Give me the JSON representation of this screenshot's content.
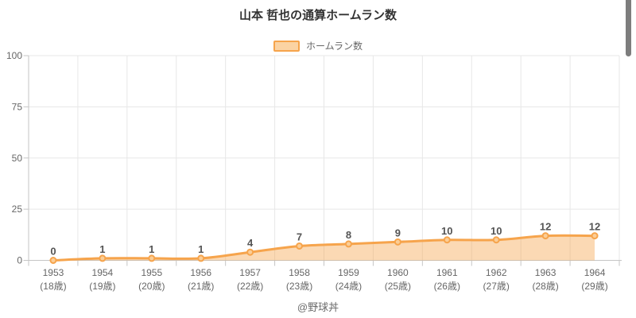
{
  "title": "山本 哲也の通算ホームラン数",
  "legend": {
    "label": "ホームラン数"
  },
  "footer": "@野球丼",
  "chart_data": {
    "type": "area",
    "title": "山本 哲也の通算ホームラン数",
    "categories": [
      "1953",
      "1954",
      "1955",
      "1956",
      "1957",
      "1958",
      "1959",
      "1960",
      "1961",
      "1962",
      "1963",
      "1964"
    ],
    "age_labels": [
      "(18歳)",
      "(19歳)",
      "(20歳)",
      "(21歳)",
      "(22歳)",
      "(23歳)",
      "(24歳)",
      "(25歳)",
      "(26歳)",
      "(27歳)",
      "(28歳)",
      "(29歳)"
    ],
    "series": [
      {
        "name": "ホームラン数",
        "values": [
          0,
          1,
          1,
          1,
          4,
          7,
          8,
          9,
          10,
          10,
          12,
          12
        ]
      }
    ],
    "data_labels": [
      "0",
      "1",
      "1",
      "1",
      "4",
      "7",
      "8",
      "9",
      "10",
      "10",
      "12",
      "12"
    ],
    "xlabel": "",
    "ylabel": "",
    "ylim": [
      0,
      100
    ],
    "y_ticks": [
      0,
      25,
      50,
      75,
      100
    ],
    "grid": true,
    "legend_position": "top",
    "smoothing": "catmull-rom",
    "colors": {
      "line": "#F6A44C",
      "area_fill": "rgba(246,164,76,0.42)",
      "marker_fill": "#FBCE97",
      "swatch_fill": "#FBD3A3",
      "grid": "#E7E7E7",
      "axis": "#C6C6C6",
      "tick_text": "#666666",
      "data_label_text": "#545454",
      "title_text": "#333333",
      "scrollbar": "#7D7D7D"
    }
  }
}
